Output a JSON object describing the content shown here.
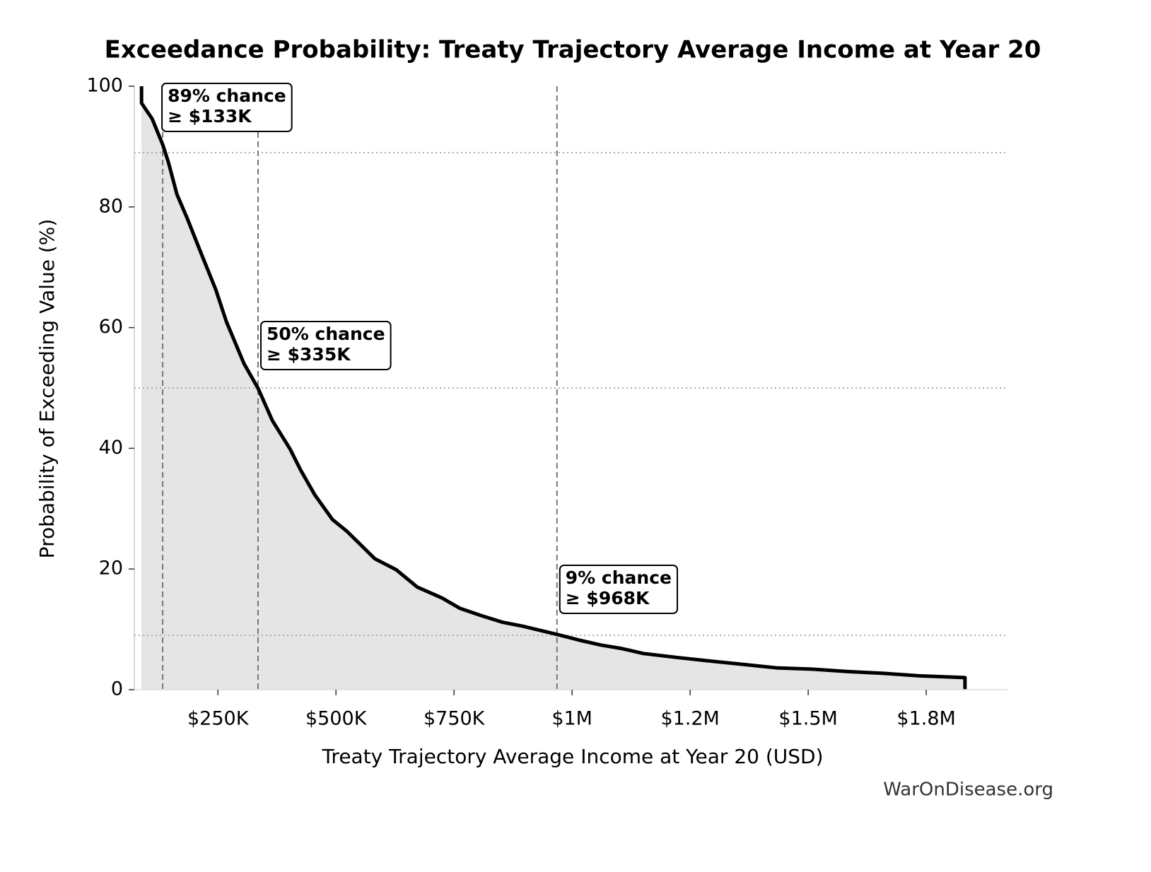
{
  "chart_data": {
    "type": "line",
    "title": "Exceedance Probability: Treaty Trajectory Average Income at Year 20",
    "x_label": "Treaty Trajectory Average Income at Year 20 (USD)",
    "y_label": "Probability of Exceeding Value (%)",
    "watermark": "WarOnDisease.org",
    "x": [
      88300,
      88300,
      110800,
      133200,
      145200,
      163200,
      185600,
      215600,
      245500,
      268000,
      305400,
      335300,
      365300,
      402700,
      425100,
      455100,
      492500,
      522500,
      552400,
      582300,
      627200,
      672200,
      724500,
      762000,
      806900,
      851800,
      896700,
      971500,
      1016000,
      1061000,
      1106000,
      1151000,
      1226000,
      1286000,
      1361000,
      1436000,
      1510000,
      1585000,
      1660000,
      1735000,
      1832000,
      1832000
    ],
    "series": [
      {
        "name": "Exceedance probability",
        "color": "#000000",
        "values": [
          100,
          97.2,
          94.6,
          90.3,
          87.4,
          82.1,
          78.0,
          72.1,
          66.3,
          61.0,
          54.0,
          49.9,
          44.6,
          39.9,
          36.4,
          32.3,
          28.2,
          26.3,
          24.0,
          21.7,
          19.9,
          17.0,
          15.2,
          13.5,
          12.3,
          11.2,
          10.5,
          9.1,
          8.2,
          7.4,
          6.8,
          6.0,
          5.3,
          4.8,
          4.2,
          3.6,
          3.4,
          3.0,
          2.7,
          2.3,
          2.0,
          0
        ]
      }
    ],
    "fill_color": "#e5e5e5",
    "thresholds": [
      {
        "probability": 89,
        "value": 133000,
        "label": [
          "89% chance",
          "≥ $133K"
        ]
      },
      {
        "probability": 50,
        "value": 335000,
        "label": [
          "50% chance",
          "≥ $335K"
        ]
      },
      {
        "probability": 9,
        "value": 968000,
        "label": [
          "9% chance",
          "≥ $968K"
        ]
      }
    ],
    "xlim": [
      73000,
      1922000
    ],
    "ylim": [
      0,
      100
    ],
    "xticks": [
      {
        "value": 250000,
        "label": "$250K"
      },
      {
        "value": 500000,
        "label": "$500K"
      },
      {
        "value": 750000,
        "label": "$750K"
      },
      {
        "value": 1000000,
        "label": "$1M"
      },
      {
        "value": 1250000,
        "label": "$1.2M"
      },
      {
        "value": 1500000,
        "label": "$1.5M"
      },
      {
        "value": 1750000,
        "label": "$1.8M"
      }
    ],
    "yticks": [
      0,
      20,
      40,
      60,
      80,
      100
    ]
  }
}
